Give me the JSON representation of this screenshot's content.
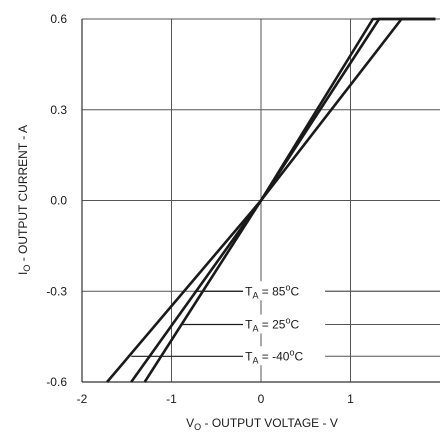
{
  "chart_data": {
    "type": "line",
    "title": "",
    "xlabel": "VO - OUTPUT VOLTAGE - V",
    "xlabel_parts": {
      "main": "V",
      "sub": "O",
      "rest": " - OUTPUT VOLTAGE - V"
    },
    "ylabel": "IO - OUTPUT CURRENT - A",
    "ylabel_parts": {
      "main": "I",
      "sub": "O",
      "rest": " - OUTPUT CURRENT - A"
    },
    "xlim": [
      -2,
      2
    ],
    "ylim": [
      -0.6,
      0.6
    ],
    "x_ticks": [
      "-2",
      "-1",
      "0",
      "1"
    ],
    "x_tick_values": [
      -2,
      -1,
      0,
      1
    ],
    "y_ticks": [
      "0.6",
      "0.3",
      "0.0",
      "-0.3",
      "-0.6"
    ],
    "y_tick_values": [
      0.6,
      0.3,
      0.0,
      -0.3,
      -0.6
    ],
    "grid": true,
    "series": [
      {
        "name": "TA = 85°C",
        "legend_parts": {
          "main": "T",
          "sub": "A",
          "rest": " = 85",
          "deg": "o",
          "unit": "C"
        },
        "x": [
          -1.72,
          0,
          1.25,
          1.95
        ],
        "y": [
          -0.6,
          0,
          0.6,
          0.6
        ]
      },
      {
        "name": "TA = 25°C",
        "legend_parts": {
          "main": "T",
          "sub": "A",
          "rest": " = 25",
          "deg": "o",
          "unit": "C"
        },
        "x": [
          -1.45,
          0,
          1.32,
          1.95
        ],
        "y": [
          -0.6,
          0,
          0.6,
          0.6
        ]
      },
      {
        "name": "TA = -40°C",
        "legend_parts": {
          "main": "T",
          "sub": "A",
          "rest": " = -40",
          "deg": "o",
          "unit": "C"
        },
        "x": [
          -1.3,
          0,
          1.57,
          1.95
        ],
        "y": [
          -0.6,
          0,
          0.6,
          0.6
        ]
      }
    ],
    "annotations": [
      {
        "series_index": 0,
        "point_x": -0.72,
        "point_y": -0.3,
        "label_x": -0.2,
        "label_y": -0.3
      },
      {
        "series_index": 1,
        "point_x": -0.88,
        "point_y": -0.41,
        "label_x": -0.2,
        "label_y": -0.41
      },
      {
        "series_index": 2,
        "point_x": -1.45,
        "point_y": -0.515,
        "label_x": -0.2,
        "label_y": -0.515
      }
    ]
  }
}
